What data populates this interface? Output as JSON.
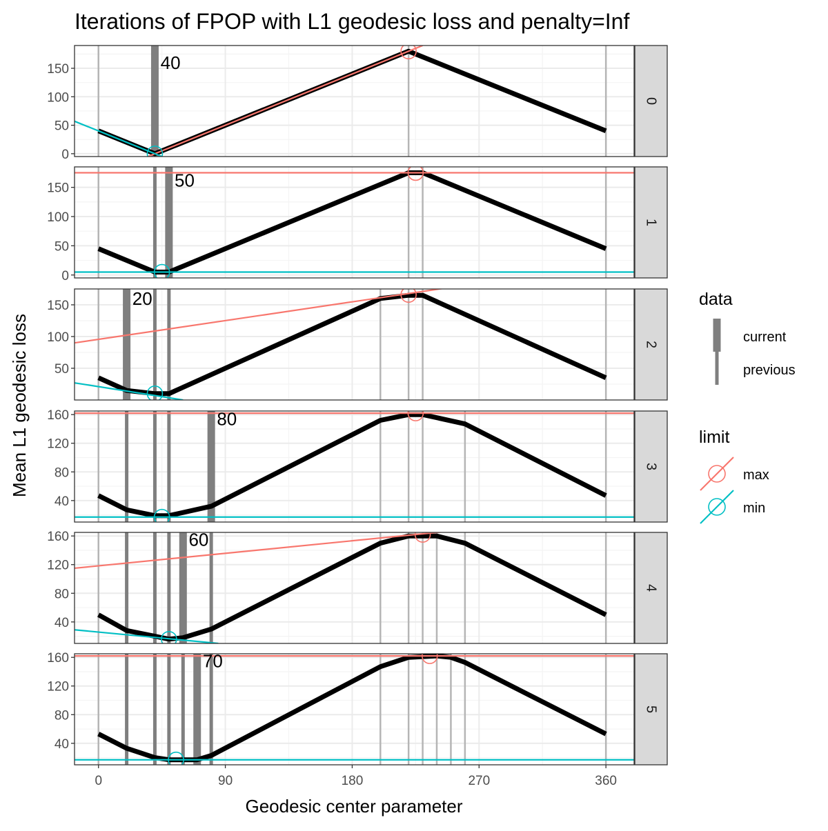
{
  "chart_data": {
    "type": "line",
    "title": "Iterations of FPOP with L1 geodesic loss and penalty=Inf",
    "xlabel": "Geodesic center parameter",
    "ylabel": "Mean L1 geodesic loss",
    "x_ticks": [
      "0",
      "90",
      "180",
      "270",
      "360"
    ],
    "x_tick_values": [
      0,
      90,
      180,
      270,
      360
    ],
    "xlim": [
      -17,
      380
    ],
    "colors": {
      "max": "#F8766D",
      "min": "#00BFC4",
      "loss": "#000000",
      "current": "#7f7f7f",
      "previous": "#7f7f7f",
      "breakpoint": "#b5b5b5",
      "strip": "#d9d9d9",
      "grid_major": "#ebebeb",
      "grid_minor": "#f4f4f4"
    },
    "legend": {
      "placement": "right",
      "data": {
        "title": "data",
        "items": [
          {
            "key": "current",
            "label": "current"
          },
          {
            "key": "previous",
            "label": "previous"
          }
        ]
      },
      "limit": {
        "title": "limit",
        "items": [
          {
            "key": "max",
            "label": "max"
          },
          {
            "key": "min",
            "label": "min"
          }
        ]
      }
    },
    "panels": [
      {
        "strip": "0",
        "ylim": [
          -5,
          190
        ],
        "y_ticks": [
          0,
          50,
          100,
          150
        ],
        "y_tick_labels": [
          "0",
          "50",
          "100",
          "150"
        ],
        "current": [
          40
        ],
        "previous": [],
        "label": {
          "text": "40",
          "x": 44,
          "y": 160
        },
        "breakpoints": [
          0,
          220,
          360
        ],
        "loss": [
          [
            0,
            40
          ],
          [
            40,
            0
          ],
          [
            220,
            180
          ],
          [
            360,
            40
          ]
        ],
        "max_line": {
          "x1": 30,
          "y1": -10,
          "x2": 230,
          "y2": 190
        },
        "min_line": {
          "x1": -17,
          "y1": 57,
          "x2": 47,
          "y2": -7
        },
        "max_point": [
          220,
          180
        ],
        "min_point": [
          40,
          0
        ]
      },
      {
        "strip": "1",
        "ylim": [
          -5,
          185
        ],
        "y_ticks": [
          0,
          50,
          100,
          150
        ],
        "y_tick_labels": [
          "0",
          "50",
          "100",
          "150"
        ],
        "current": [
          50
        ],
        "previous": [
          40
        ],
        "label": {
          "text": "50",
          "x": 54,
          "y": 162
        },
        "breakpoints": [
          0,
          220,
          230,
          360
        ],
        "loss": [
          [
            0,
            45
          ],
          [
            40,
            5
          ],
          [
            50,
            5
          ],
          [
            220,
            175
          ],
          [
            230,
            175
          ],
          [
            360,
            45
          ]
        ],
        "max_line": {
          "x1": -17,
          "y1": 175,
          "x2": 380,
          "y2": 175
        },
        "min_line": {
          "x1": -17,
          "y1": 5,
          "x2": 380,
          "y2": 5
        },
        "max_point": [
          225,
          175
        ],
        "min_point": [
          45,
          5
        ]
      },
      {
        "strip": "2",
        "ylim": [
          0,
          175
        ],
        "y_ticks": [
          50,
          100,
          150
        ],
        "y_tick_labels": [
          "50",
          "100",
          "150"
        ],
        "current": [
          20
        ],
        "previous": [
          40,
          50
        ],
        "label": {
          "text": "20",
          "x": 24,
          "y": 160
        },
        "breakpoints": [
          0,
          200,
          220,
          230,
          360
        ],
        "loss": [
          [
            0,
            35
          ],
          [
            20,
            15
          ],
          [
            40,
            10
          ],
          [
            50,
            10
          ],
          [
            200,
            160
          ],
          [
            220,
            165
          ],
          [
            230,
            165
          ],
          [
            360,
            35
          ]
        ],
        "max_line": {
          "x1": -17,
          "y1": 90,
          "x2": 248,
          "y2": 177
        },
        "min_line": {
          "x1": -17,
          "y1": 27,
          "x2": 60,
          "y2": 0
        },
        "max_point": [
          220,
          166
        ],
        "min_point": [
          40,
          10
        ]
      },
      {
        "strip": "3",
        "ylim": [
          10,
          165
        ],
        "y_ticks": [
          40,
          80,
          120,
          160
        ],
        "y_tick_labels": [
          "40",
          "80",
          "120",
          "160"
        ],
        "current": [
          80
        ],
        "previous": [
          20,
          40,
          50
        ],
        "label": {
          "text": "80",
          "x": 84,
          "y": 154
        },
        "breakpoints": [
          0,
          200,
          220,
          230,
          260,
          360
        ],
        "loss": [
          [
            0,
            47
          ],
          [
            20,
            27
          ],
          [
            40,
            19
          ],
          [
            50,
            19
          ],
          [
            80,
            32
          ],
          [
            200,
            152
          ],
          [
            220,
            160
          ],
          [
            230,
            160
          ],
          [
            260,
            147
          ],
          [
            360,
            47
          ]
        ],
        "max_line": {
          "x1": -17,
          "y1": 162,
          "x2": 380,
          "y2": 162
        },
        "min_line": {
          "x1": -17,
          "y1": 17,
          "x2": 380,
          "y2": 17
        },
        "max_point": [
          225,
          162
        ],
        "min_point": [
          45,
          17
        ]
      },
      {
        "strip": "4",
        "ylim": [
          10,
          165
        ],
        "y_ticks": [
          40,
          80,
          120,
          160
        ],
        "y_tick_labels": [
          "40",
          "80",
          "120",
          "160"
        ],
        "current": [
          60
        ],
        "previous": [
          20,
          40,
          50,
          80
        ],
        "label": {
          "text": "60",
          "x": 64,
          "y": 155
        },
        "breakpoints": [
          0,
          200,
          220,
          230,
          240,
          260,
          360
        ],
        "loss": [
          [
            0,
            50
          ],
          [
            20,
            28
          ],
          [
            40,
            20
          ],
          [
            50,
            16
          ],
          [
            60,
            18
          ],
          [
            80,
            30
          ],
          [
            200,
            150
          ],
          [
            220,
            160
          ],
          [
            240,
            160
          ],
          [
            260,
            150
          ],
          [
            360,
            50
          ]
        ],
        "max_line": {
          "x1": -17,
          "y1": 115,
          "x2": 266,
          "y2": 170
        },
        "min_line": {
          "x1": -17,
          "y1": 29,
          "x2": 85,
          "y2": 10
        },
        "max_point": [
          230,
          162
        ],
        "min_point": [
          50,
          16
        ]
      },
      {
        "strip": "5",
        "ylim": [
          10,
          165
        ],
        "y_ticks": [
          40,
          80,
          120,
          160
        ],
        "y_tick_labels": [
          "40",
          "80",
          "120",
          "160"
        ],
        "current": [
          70
        ],
        "previous": [
          20,
          40,
          50,
          60,
          80
        ],
        "label": {
          "text": "70",
          "x": 74,
          "y": 155
        },
        "breakpoints": [
          0,
          200,
          220,
          230,
          240,
          250,
          260,
          360
        ],
        "loss": [
          [
            0,
            53
          ],
          [
            20,
            33
          ],
          [
            40,
            20
          ],
          [
            50,
            17
          ],
          [
            70,
            17
          ],
          [
            80,
            23
          ],
          [
            200,
            147
          ],
          [
            220,
            160
          ],
          [
            240,
            162
          ],
          [
            250,
            160
          ],
          [
            260,
            153
          ],
          [
            360,
            53
          ]
        ],
        "max_line": {
          "x1": -17,
          "y1": 162,
          "x2": 380,
          "y2": 162
        },
        "min_line": {
          "x1": -17,
          "y1": 17,
          "x2": 380,
          "y2": 17
        },
        "max_point": [
          235,
          162
        ],
        "min_point": [
          55,
          17
        ]
      }
    ]
  }
}
